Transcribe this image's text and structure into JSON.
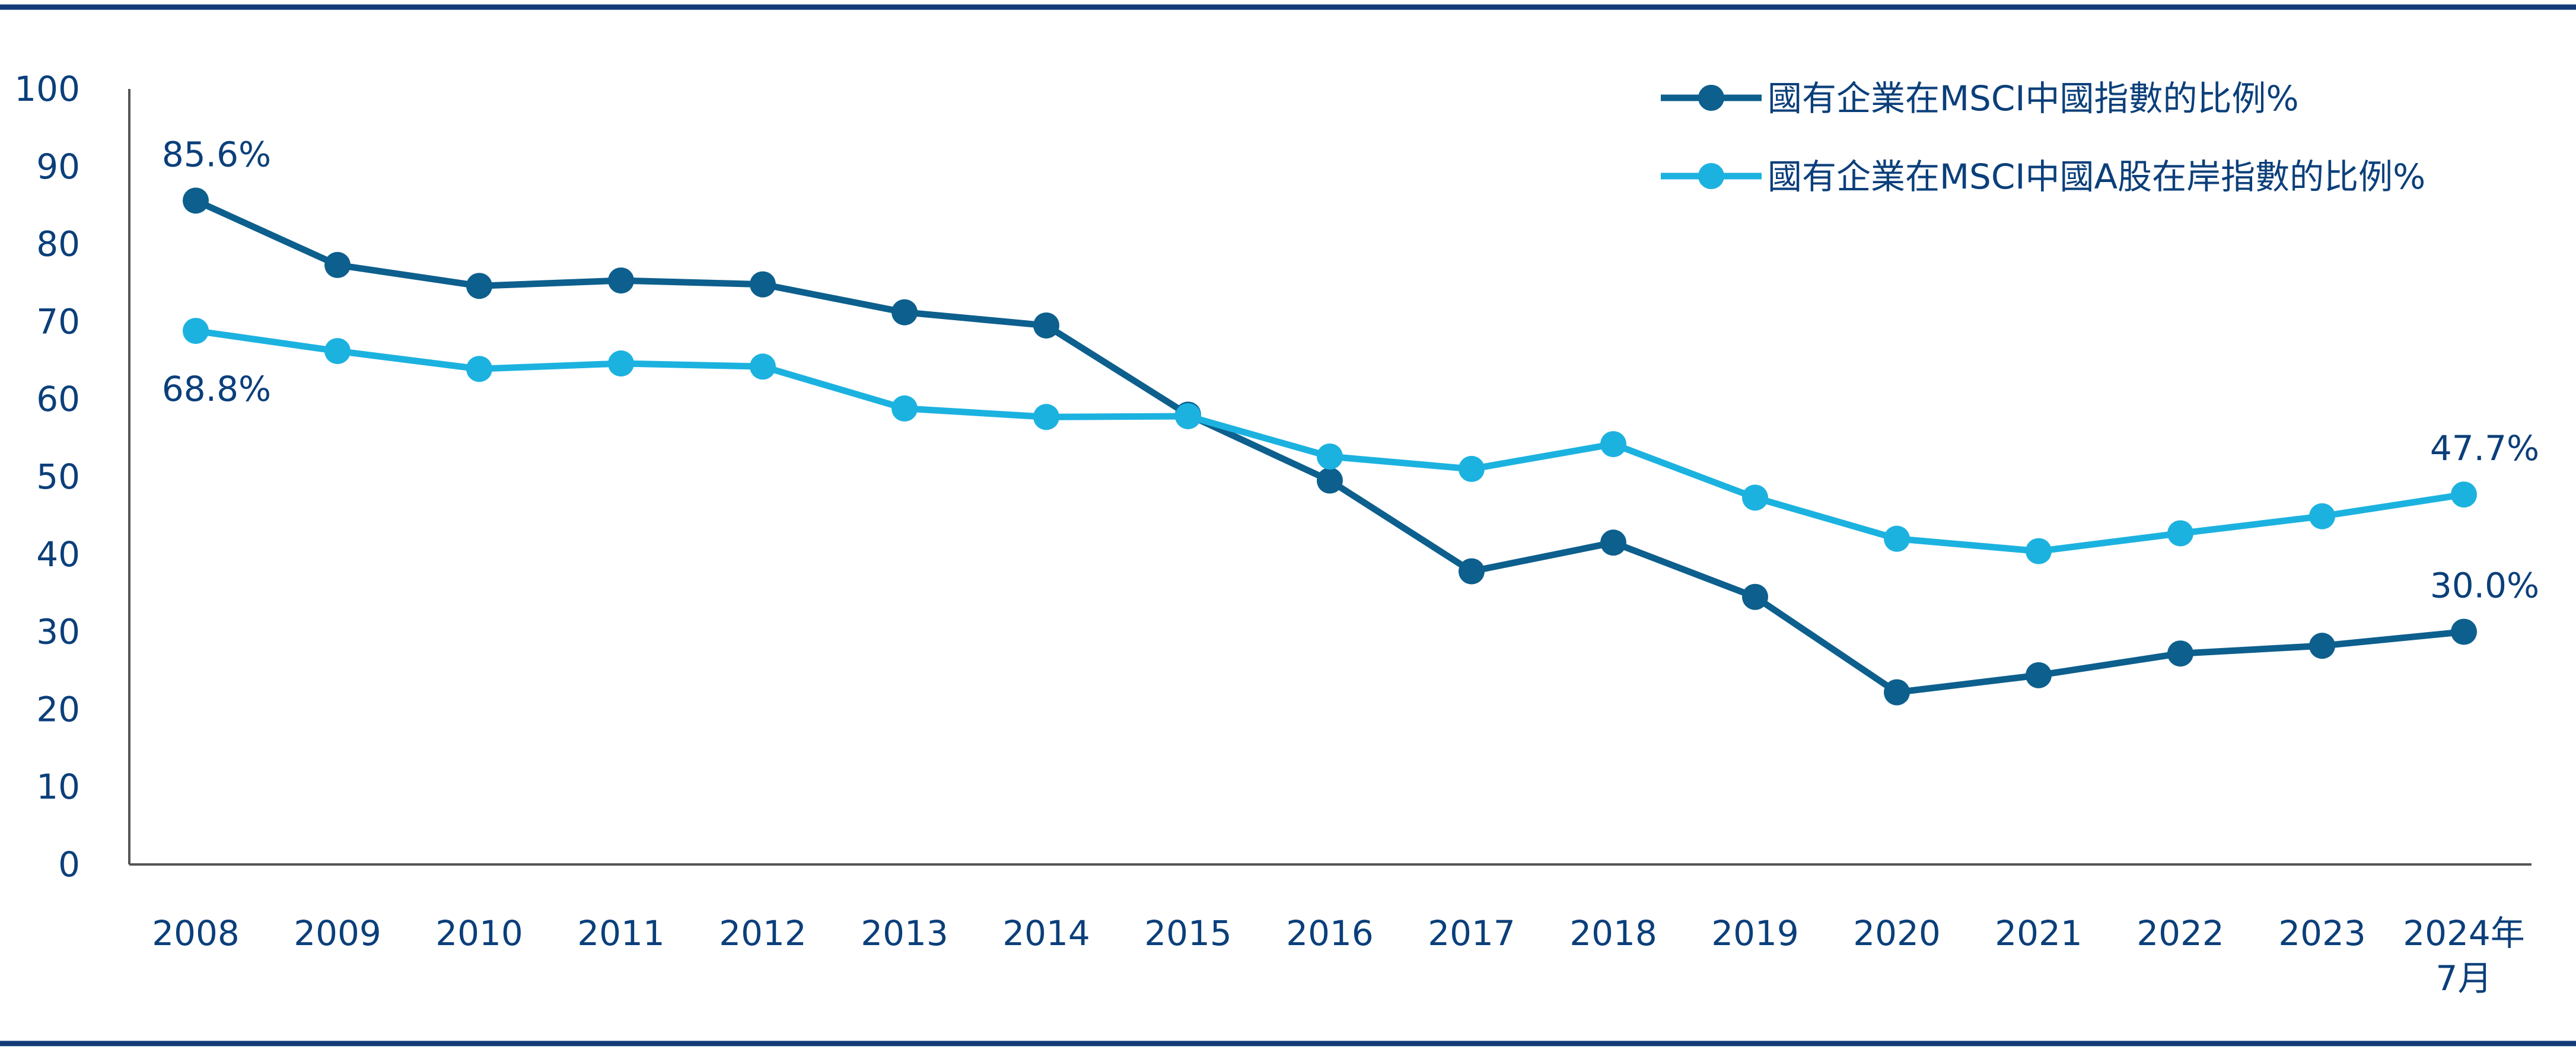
{
  "chart_data": {
    "type": "line",
    "categories": [
      "2008",
      "2009",
      "2010",
      "2011",
      "2012",
      "2013",
      "2014",
      "2015",
      "2016",
      "2017",
      "2018",
      "2019",
      "2020",
      "2021",
      "2022",
      "2023",
      "2024年\n7月"
    ],
    "ylim": [
      0,
      100
    ],
    "yticks": [
      0,
      10,
      20,
      30,
      40,
      50,
      60,
      70,
      80,
      90,
      100
    ],
    "grid": false,
    "legend_position": "top-right",
    "series": [
      {
        "name": "國有企業在MSCI中國指數的比例%",
        "color": "#0d5f8d",
        "values": [
          85.6,
          77.3,
          74.6,
          75.3,
          74.8,
          71.2,
          69.5,
          58.0,
          49.5,
          37.8,
          41.5,
          34.5,
          22.2,
          24.4,
          27.2,
          28.2,
          30.0
        ]
      },
      {
        "name": "國有企業在MSCI中國A股在岸指數的比例%",
        "color": "#1cb2e0",
        "values": [
          68.8,
          66.2,
          63.9,
          64.6,
          64.2,
          58.8,
          57.7,
          57.8,
          52.6,
          51.0,
          54.2,
          47.3,
          42.0,
          40.4,
          42.7,
          44.9,
          47.7
        ]
      }
    ],
    "annotations": [
      {
        "series": 0,
        "index": 0,
        "text": "85.6%",
        "placement": "above"
      },
      {
        "series": 1,
        "index": 0,
        "text": "68.8%",
        "placement": "below"
      },
      {
        "series": 1,
        "index": 16,
        "text": "47.7%",
        "placement": "above"
      },
      {
        "series": 0,
        "index": 16,
        "text": "30.0%",
        "placement": "above"
      }
    ],
    "axis_color": "#0b3f7a",
    "frame_line_color": "#123b78"
  }
}
